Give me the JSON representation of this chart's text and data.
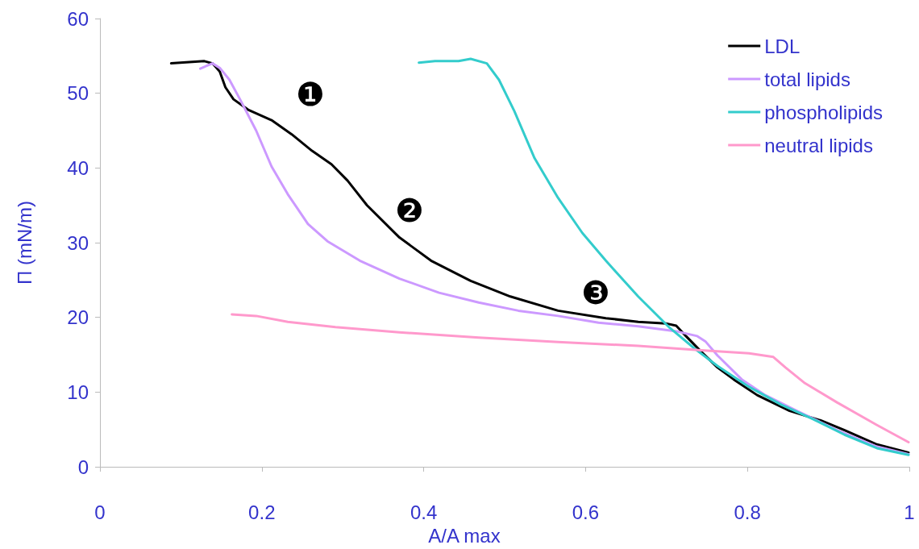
{
  "chart_data": {
    "type": "line",
    "xlabel": "A/A max",
    "ylabel": "Π (mN/m)",
    "xlim": [
      0,
      1
    ],
    "xticks": [
      0,
      0.2,
      0.4,
      0.6,
      0.8,
      1
    ],
    "ylim": [
      0,
      60
    ],
    "yticks": [
      0,
      10,
      20,
      30,
      40,
      50,
      60
    ],
    "grid": false,
    "legend": "top right",
    "marker": "none",
    "line_style": "solid",
    "series": [
      {
        "name": "LDL",
        "color": "#000000",
        "x": [
          0.088,
          0.129,
          0.139,
          0.148,
          0.155,
          0.165,
          0.183,
          0.212,
          0.237,
          0.262,
          0.286,
          0.306,
          0.33,
          0.37,
          0.409,
          0.458,
          0.507,
          0.566,
          0.625,
          0.665,
          0.699,
          0.712,
          0.724,
          0.743,
          0.763,
          0.783,
          0.812,
          0.852,
          0.891,
          0.92,
          0.96,
          0.999
        ],
        "values": [
          54.0,
          54.3,
          54.0,
          52.9,
          50.8,
          49.2,
          47.8,
          46.4,
          44.5,
          42.3,
          40.5,
          38.3,
          35.0,
          30.7,
          27.6,
          24.9,
          22.8,
          20.9,
          19.9,
          19.4,
          19.2,
          18.9,
          17.5,
          15.4,
          13.3,
          11.7,
          9.6,
          7.5,
          6.2,
          4.9,
          3.0,
          1.9
        ]
      },
      {
        "name": "total lipids",
        "color": "#cc99ff",
        "x": [
          0.124,
          0.139,
          0.148,
          0.16,
          0.173,
          0.193,
          0.212,
          0.232,
          0.257,
          0.281,
          0.321,
          0.37,
          0.419,
          0.468,
          0.517,
          0.566,
          0.616,
          0.665,
          0.714,
          0.738,
          0.748,
          0.763,
          0.793,
          0.822,
          0.861,
          0.911,
          0.96,
          0.999
        ],
        "values": [
          53.3,
          54.0,
          53.4,
          51.8,
          49.2,
          45.0,
          40.2,
          36.5,
          32.5,
          30.2,
          27.6,
          25.2,
          23.3,
          22.0,
          20.9,
          20.2,
          19.3,
          18.8,
          18.1,
          17.5,
          16.8,
          14.9,
          11.7,
          9.6,
          7.5,
          4.9,
          2.7,
          1.7
        ]
      },
      {
        "name": "phospholipids",
        "color": "#33cccc",
        "x": [
          0.394,
          0.414,
          0.443,
          0.458,
          0.478,
          0.493,
          0.512,
          0.537,
          0.566,
          0.596,
          0.625,
          0.665,
          0.704,
          0.734,
          0.763,
          0.802,
          0.842,
          0.881,
          0.92,
          0.96,
          0.999
        ],
        "values": [
          54.1,
          54.3,
          54.3,
          54.6,
          54.0,
          51.8,
          47.6,
          41.3,
          36.0,
          31.3,
          27.6,
          22.8,
          18.6,
          15.9,
          13.5,
          10.7,
          8.3,
          6.4,
          4.3,
          2.5,
          1.6
        ]
      },
      {
        "name": "neutral lipids",
        "color": "#ff99cc",
        "x": [
          0.163,
          0.193,
          0.232,
          0.291,
          0.37,
          0.468,
          0.566,
          0.665,
          0.743,
          0.802,
          0.832,
          0.847,
          0.871,
          0.911,
          0.96,
          0.999
        ],
        "values": [
          20.4,
          20.2,
          19.4,
          18.7,
          18.0,
          17.3,
          16.7,
          16.2,
          15.6,
          15.2,
          14.7,
          13.3,
          11.2,
          8.6,
          5.6,
          3.3
        ]
      }
    ],
    "annotations": [
      "❶",
      "❷",
      "❸"
    ]
  }
}
